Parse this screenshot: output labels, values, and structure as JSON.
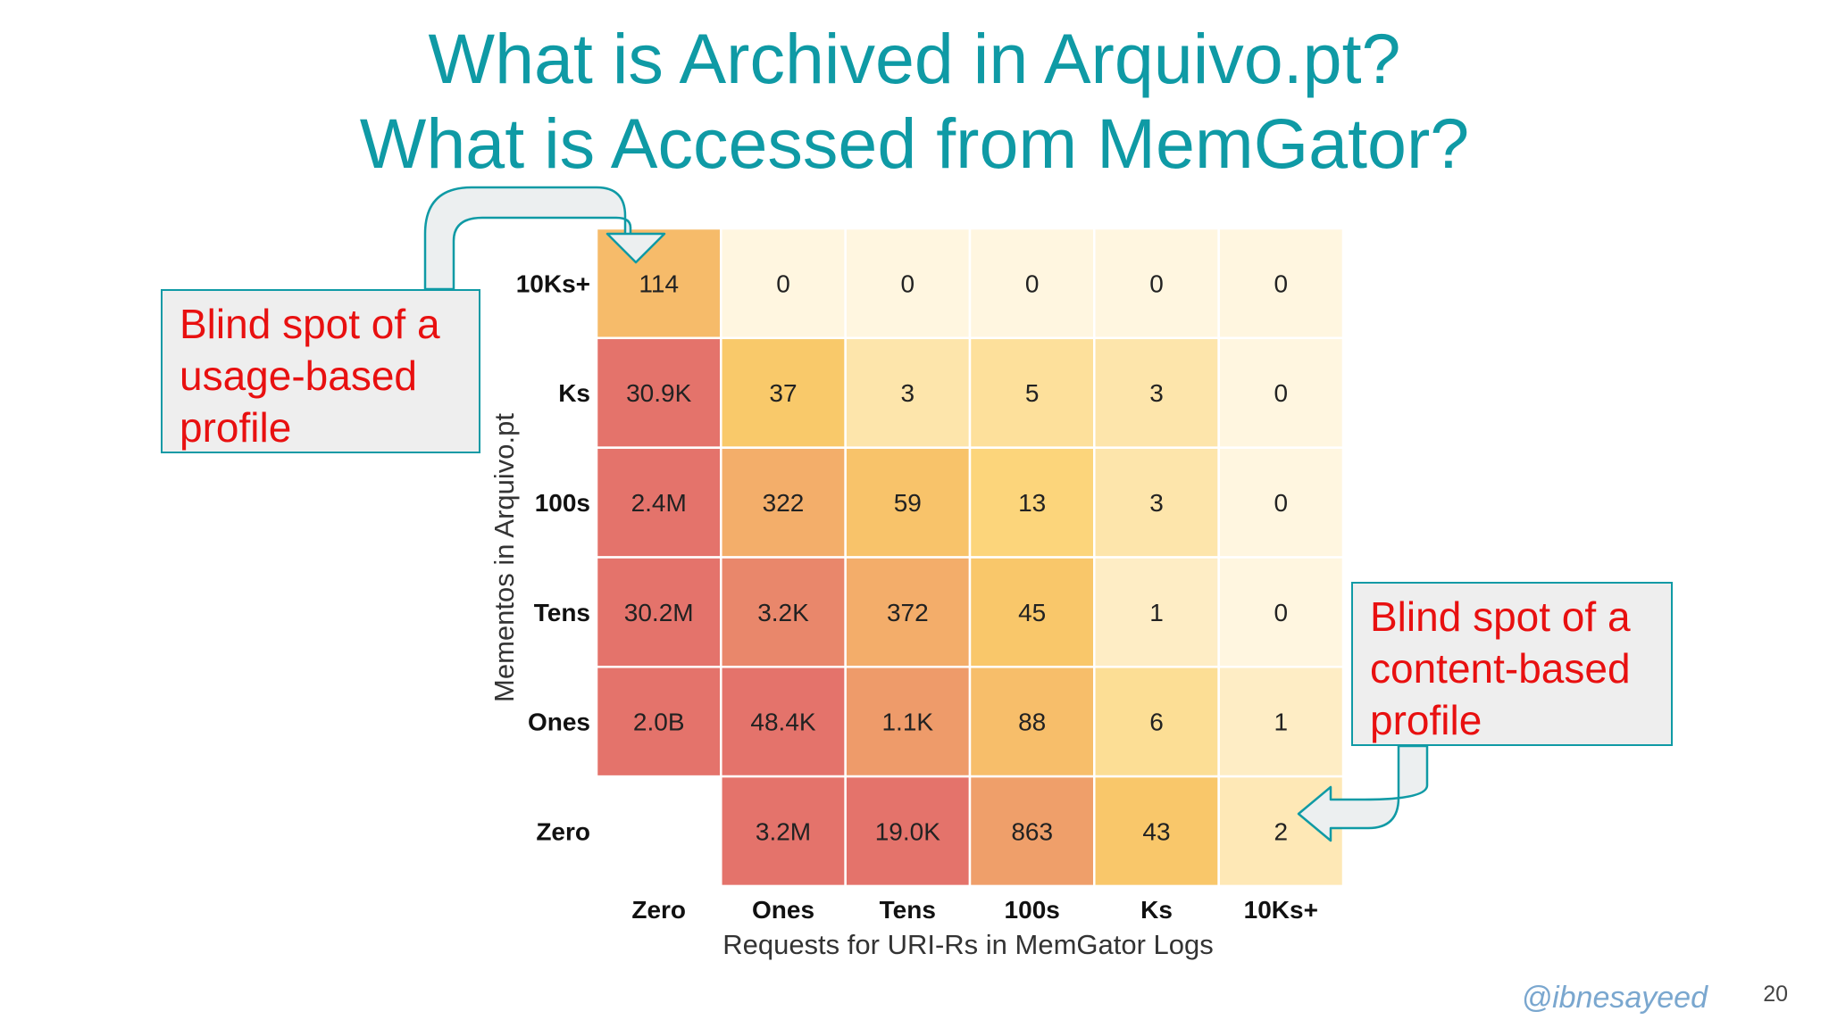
{
  "slide": {
    "title_line1": "What is Archived in Arquivo.pt?",
    "title_line2": "What is Accessed from MemGator?",
    "callouts": {
      "usage": [
        "Blind spot of a",
        "usage-based",
        "profile"
      ],
      "content": [
        "Blind spot of a",
        "content-based",
        "profile"
      ]
    },
    "footer_handle": "@ibnesayeed",
    "page_number": "20",
    "accent_color": "#0f9aa5",
    "callout_text_color": "#e81010"
  },
  "chart_data": {
    "type": "heatmap",
    "xlabel": "Requests for URI-Rs in MemGator Logs",
    "ylabel": "Mementos in Arquivo.pt",
    "x_categories": [
      "Zero",
      "Ones",
      "Tens",
      "100s",
      "Ks",
      "10Ks+"
    ],
    "y_categories_top_to_bottom": [
      "10Ks+",
      "Ks",
      "100s",
      "Tens",
      "Ones",
      "Zero"
    ],
    "rows": [
      [
        "114",
        "0",
        "0",
        "0",
        "0",
        "0"
      ],
      [
        "30.9K",
        "37",
        "3",
        "5",
        "3",
        "0"
      ],
      [
        "2.4M",
        "322",
        "59",
        "13",
        "3",
        "0"
      ],
      [
        "30.2M",
        "3.2K",
        "372",
        "45",
        "1",
        "0"
      ],
      [
        "2.0B",
        "48.4K",
        "1.1K",
        "88",
        "6",
        "1"
      ],
      [
        "",
        "3.2M",
        "19.0K",
        "863",
        "43",
        "2"
      ]
    ],
    "colormap": [
      "#fff6e0",
      "#fbd06a",
      "#f2aa6a",
      "#e4736b"
    ]
  }
}
